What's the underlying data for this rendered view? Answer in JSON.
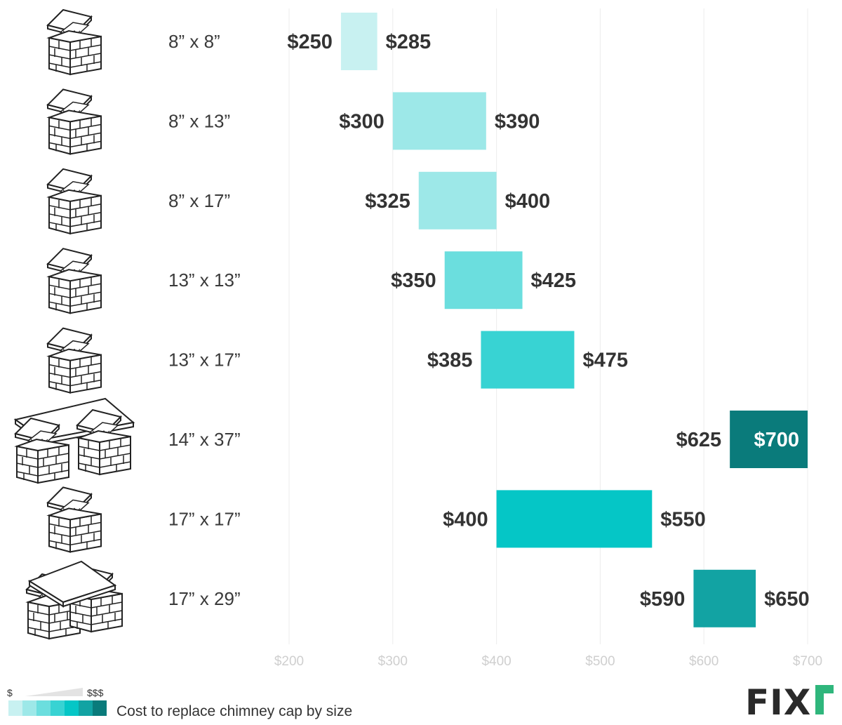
{
  "chart_data": {
    "type": "range-bar",
    "title": "Cost to replace chimney cap by size",
    "xlim": [
      200,
      700
    ],
    "ticks": [
      200,
      300,
      400,
      500,
      600,
      700
    ],
    "tick_labels": [
      "$200",
      "$300",
      "$400",
      "$500",
      "$600",
      "$700"
    ],
    "grid": true,
    "rows": [
      {
        "size": "8” x 8”",
        "low": 250,
        "high": 285,
        "low_label": "$250",
        "high_label": "$285",
        "color": "#c8f1f1",
        "icon": "chimney-single-icon"
      },
      {
        "size": "8” x 13”",
        "low": 300,
        "high": 390,
        "low_label": "$300",
        "high_label": "$390",
        "color": "#9de8e8",
        "icon": "chimney-single-icon"
      },
      {
        "size": "8” x 17”",
        "low": 325,
        "high": 400,
        "low_label": "$325",
        "high_label": "$400",
        "color": "#9de8e8",
        "icon": "chimney-single-icon"
      },
      {
        "size": "13” x 13”",
        "low": 350,
        "high": 425,
        "low_label": "$350",
        "high_label": "$425",
        "color": "#6bdede",
        "icon": "chimney-single-icon"
      },
      {
        "size": "13” x 17”",
        "low": 385,
        "high": 475,
        "low_label": "$385",
        "high_label": "$475",
        "color": "#38d3d3",
        "icon": "chimney-single-icon"
      },
      {
        "size": "14” x 37”",
        "low": 625,
        "high": 700,
        "low_label": "$625",
        "high_label": "$700",
        "color": "#0a7b7b",
        "icon": "chimney-double-wide-icon"
      },
      {
        "size": "17” x 17”",
        "low": 400,
        "high": 550,
        "low_label": "$400",
        "high_label": "$550",
        "color": "#05c6c6",
        "icon": "chimney-single-icon"
      },
      {
        "size": "17” x 29”",
        "low": 590,
        "high": 650,
        "low_label": "$590",
        "high_label": "$650",
        "color": "#12a3a3",
        "icon": "chimney-double-icon"
      }
    ]
  },
  "legend": {
    "low_symbol": "$",
    "high_symbol": "$$$",
    "swatches": [
      "#c8f1f1",
      "#9de8e8",
      "#6bdede",
      "#38d3d3",
      "#05c6c6",
      "#12a3a3",
      "#0a7b7b"
    ],
    "caption": "Cost to replace chimney cap by size"
  },
  "logo": {
    "text": "FIXr",
    "accent": "#2fb67c"
  }
}
